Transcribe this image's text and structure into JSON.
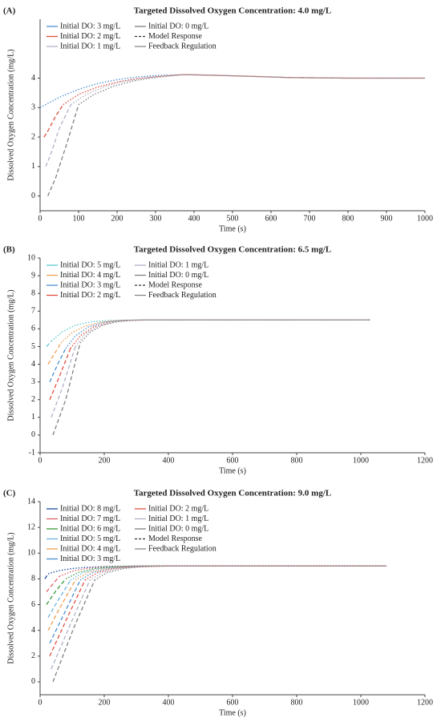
{
  "chart_data": [
    {
      "type": "line",
      "panel_label": "(A)",
      "title": "Targeted Dissolved Oxygen Concentration: 4.0 mg/L",
      "x_label": "Time (s)",
      "y_label": "Dissolved Oxygen Concentration (mg/L)",
      "xlim": [
        0,
        1000
      ],
      "ylim": [
        -0.5,
        6
      ],
      "xticks": [
        0,
        100,
        200,
        300,
        400,
        500,
        600,
        700,
        800,
        900,
        1000
      ],
      "yticks": [
        0,
        1,
        2,
        3,
        4
      ],
      "line_styles": [
        {
          "name": "Model Response",
          "style": "dashed",
          "color": "#333333"
        },
        {
          "name": "Feedback Regulation",
          "style": "solid",
          "color": "#888888"
        }
      ],
      "series": [
        {
          "name": "Initial DO: 3 mg/L",
          "color": "#4a90d0",
          "segments": [
            {
              "style": "dotted",
              "x": [
                0,
                50,
                100,
                150,
                200,
                250,
                300,
                370,
                450,
                550,
                650,
                800,
                1000
              ],
              "values": [
                3.0,
                3.35,
                3.62,
                3.82,
                3.95,
                4.04,
                4.09,
                4.12,
                4.1,
                4.06,
                4.02,
                4.0,
                4.0
              ]
            }
          ]
        },
        {
          "name": "Initial DO: 2 mg/L",
          "color": "#e05040",
          "segments": [
            {
              "style": "dashed",
              "x": [
                10,
                20,
                40,
                60
              ],
              "values": [
                2.0,
                2.2,
                2.7,
                3.1
              ]
            },
            {
              "style": "dotted",
              "x": [
                60,
                100,
                150,
                200,
                250,
                300,
                370,
                450,
                550,
                650,
                800,
                1000
              ],
              "values": [
                3.1,
                3.45,
                3.7,
                3.87,
                3.98,
                4.05,
                4.12,
                4.1,
                4.06,
                4.02,
                4.0,
                4.0
              ]
            }
          ]
        },
        {
          "name": "Initial DO: 1 mg/L",
          "color": "#b0b0c8",
          "segments": [
            {
              "style": "dashed",
              "x": [
                15,
                30,
                50,
                80
              ],
              "values": [
                1.0,
                1.5,
                2.3,
                3.1
              ]
            },
            {
              "style": "dotted",
              "x": [
                80,
                120,
                170,
                220,
                270,
                320,
                370,
                450,
                550,
                650,
                800,
                1000
              ],
              "values": [
                3.1,
                3.45,
                3.72,
                3.9,
                4.01,
                4.08,
                4.12,
                4.1,
                4.06,
                4.02,
                4.0,
                4.0
              ]
            }
          ]
        },
        {
          "name": "Initial DO: 0 mg/L",
          "color": "#808080",
          "segments": [
            {
              "style": "dashed",
              "x": [
                20,
                40,
                70,
                100
              ],
              "values": [
                0.0,
                0.6,
                1.8,
                3.1
              ]
            },
            {
              "style": "dotted",
              "x": [
                100,
                140,
                190,
                240,
                290,
                340,
                380,
                450,
                550,
                650,
                800,
                1000
              ],
              "values": [
                3.1,
                3.45,
                3.72,
                3.9,
                4.01,
                4.08,
                4.12,
                4.1,
                4.06,
                4.02,
                4.0,
                4.0
              ]
            }
          ]
        }
      ]
    },
    {
      "type": "line",
      "panel_label": "(B)",
      "title": "Targeted Dissolved Oxygen Concentration: 6.5 mg/L",
      "x_label": "Time (s)",
      "y_label": "Dissolved Oxygen Concentration (mg/L)",
      "xlim": [
        0,
        1200
      ],
      "ylim": [
        -1,
        10
      ],
      "xticks": [
        0,
        200,
        400,
        600,
        800,
        1000,
        1200
      ],
      "yticks": [
        -1,
        0,
        1,
        2,
        3,
        4,
        5,
        6,
        7,
        8,
        9,
        10
      ],
      "line_styles": [
        {
          "name": "Model Response",
          "style": "dashed",
          "color": "#333333"
        },
        {
          "name": "Feedback Regulation",
          "style": "solid",
          "color": "#888888"
        }
      ],
      "series": [
        {
          "name": "Initial DO: 5 mg/L",
          "color": "#5bc8d0",
          "segments": [
            {
              "style": "dashed",
              "x": [
                20,
                35
              ],
              "values": [
                5.0,
                5.3
              ]
            },
            {
              "style": "dotted",
              "x": [
                35,
                70,
                110,
                160,
                220,
                300,
                500,
                800,
                1030
              ],
              "values": [
                5.3,
                5.85,
                6.2,
                6.4,
                6.48,
                6.5,
                6.5,
                6.5,
                6.5
              ]
            }
          ]
        },
        {
          "name": "Initial DO: 4 mg/L",
          "color": "#f0a050",
          "segments": [
            {
              "style": "dashed",
              "x": [
                25,
                45,
                65
              ],
              "values": [
                4.0,
                4.6,
                5.2
              ]
            },
            {
              "style": "dotted",
              "x": [
                65,
                100,
                140,
                190,
                250,
                320,
                500,
                1030
              ],
              "values": [
                5.2,
                5.8,
                6.15,
                6.38,
                6.48,
                6.5,
                6.5,
                6.5
              ]
            }
          ]
        },
        {
          "name": "Initial DO: 3 mg/L",
          "color": "#4a90d0",
          "segments": [
            {
              "style": "dashed",
              "x": [
                30,
                55,
                80
              ],
              "values": [
                3.0,
                4.0,
                4.9
              ]
            },
            {
              "style": "dotted",
              "x": [
                80,
                110,
                150,
                200,
                260,
                330,
                500,
                1030
              ],
              "values": [
                4.9,
                5.6,
                6.1,
                6.38,
                6.48,
                6.5,
                6.5,
                6.5
              ]
            }
          ]
        },
        {
          "name": "Initial DO: 2 mg/L",
          "color": "#e05040",
          "segments": [
            {
              "style": "dashed",
              "x": [
                30,
                60,
                95
              ],
              "values": [
                2.0,
                3.3,
                4.9
              ]
            },
            {
              "style": "dotted",
              "x": [
                95,
                125,
                165,
                215,
                270,
                340,
                500,
                1030
              ],
              "values": [
                4.9,
                5.6,
                6.1,
                6.38,
                6.48,
                6.5,
                6.5,
                6.5
              ]
            }
          ]
        },
        {
          "name": "Initial DO: 1 mg/L",
          "color": "#b0b0c8",
          "segments": [
            {
              "style": "dashed",
              "x": [
                35,
                70,
                110
              ],
              "values": [
                1.0,
                2.7,
                5.0
              ]
            },
            {
              "style": "dotted",
              "x": [
                110,
                140,
                180,
                230,
                290,
                350,
                500,
                1030
              ],
              "values": [
                5.0,
                5.7,
                6.15,
                6.4,
                6.49,
                6.5,
                6.5,
                6.5
              ]
            }
          ]
        },
        {
          "name": "Initial DO: 0 mg/L",
          "color": "#808080",
          "segments": [
            {
              "style": "dashed",
              "x": [
                40,
                80,
                125
              ],
              "values": [
                0.0,
                2.0,
                5.2
              ]
            },
            {
              "style": "dotted",
              "x": [
                125,
                155,
                195,
                245,
                300,
                360,
                500,
                1030
              ],
              "values": [
                5.2,
                5.8,
                6.2,
                6.42,
                6.49,
                6.5,
                6.5,
                6.5
              ]
            }
          ]
        }
      ]
    },
    {
      "type": "line",
      "panel_label": "(C)",
      "title": "Targeted Dissolved Oxygen Concentration: 9.0 mg/L",
      "x_label": "Time (s)",
      "y_label": "Dissolved Oxygen Concentration (mg/L)",
      "xlim": [
        0,
        1200
      ],
      "ylim": [
        -1,
        14
      ],
      "xticks": [
        0,
        200,
        400,
        600,
        800,
        1000,
        1200
      ],
      "yticks": [
        0,
        2,
        4,
        6,
        8,
        10,
        12,
        14
      ],
      "line_styles": [
        {
          "name": "Model Response",
          "style": "dashed",
          "color": "#333333"
        },
        {
          "name": "Feedback Regulation",
          "style": "solid",
          "color": "#888888"
        }
      ],
      "series": [
        {
          "name": "Initial DO: 8 mg/L",
          "color": "#1f4e9e",
          "segments": [
            {
              "style": "dashed",
              "x": [
                15,
                25
              ],
              "values": [
                8.0,
                8.4
              ]
            },
            {
              "style": "dotted",
              "x": [
                25,
                60,
                100,
                150,
                200,
                300,
                500,
                1080
              ],
              "values": [
                8.4,
                8.65,
                8.8,
                8.9,
                8.96,
                9.0,
                9.0,
                9.0
              ]
            }
          ]
        },
        {
          "name": "Initial DO: 7 mg/L",
          "color": "#e0606a",
          "segments": [
            {
              "style": "dashed",
              "x": [
                20,
                40,
                60
              ],
              "values": [
                7.0,
                7.6,
                8.2
              ]
            },
            {
              "style": "dotted",
              "x": [
                60,
                100,
                150,
                200,
                250,
                320,
                500,
                1080
              ],
              "values": [
                8.2,
                8.6,
                8.82,
                8.93,
                8.98,
                9.0,
                9.0,
                9.0
              ]
            }
          ]
        },
        {
          "name": "Initial DO: 6 mg/L",
          "color": "#3a9a3a",
          "segments": [
            {
              "style": "dashed",
              "x": [
                20,
                50,
                80
              ],
              "values": [
                6.0,
                7.1,
                8.0
              ]
            },
            {
              "style": "dotted",
              "x": [
                80,
                120,
                170,
                220,
                270,
                340,
                500,
                1080
              ],
              "values": [
                8.0,
                8.5,
                8.8,
                8.93,
                8.98,
                9.0,
                9.0,
                9.0
              ]
            }
          ]
        },
        {
          "name": "Initial DO: 5 mg/L",
          "color": "#6cb4e0",
          "segments": [
            {
              "style": "dashed",
              "x": [
                25,
                60,
                95
              ],
              "values": [
                5.0,
                6.5,
                7.9
              ]
            },
            {
              "style": "dotted",
              "x": [
                95,
                135,
                185,
                235,
                285,
                350,
                500,
                1080
              ],
              "values": [
                7.9,
                8.5,
                8.8,
                8.93,
                8.98,
                9.0,
                9.0,
                9.0
              ]
            }
          ]
        },
        {
          "name": "Initial DO: 4 mg/L",
          "color": "#f0a050",
          "segments": [
            {
              "style": "dashed",
              "x": [
                25,
                65,
                110
              ],
              "values": [
                4.0,
                5.9,
                7.9
              ]
            },
            {
              "style": "dotted",
              "x": [
                110,
                150,
                200,
                250,
                300,
                360,
                500,
                1080
              ],
              "values": [
                7.9,
                8.5,
                8.8,
                8.93,
                8.98,
                9.0,
                9.0,
                9.0
              ]
            }
          ]
        },
        {
          "name": "Initial DO: 3 mg/L",
          "color": "#4a90d0",
          "segments": [
            {
              "style": "dashed",
              "x": [
                30,
                75,
                125
              ],
              "values": [
                3.0,
                5.3,
                7.9
              ]
            },
            {
              "style": "dotted",
              "x": [
                125,
                165,
                215,
                265,
                315,
                375,
                500,
                1080
              ],
              "values": [
                7.9,
                8.5,
                8.8,
                8.93,
                8.98,
                9.0,
                9.0,
                9.0
              ]
            }
          ]
        },
        {
          "name": "Initial DO: 2 mg/L",
          "color": "#e05040",
          "segments": [
            {
              "style": "dashed",
              "x": [
                30,
                85,
                140
              ],
              "values": [
                2.0,
                5.0,
                7.9
              ]
            },
            {
              "style": "dotted",
              "x": [
                140,
                180,
                230,
                280,
                330,
                390,
                500,
                1080
              ],
              "values": [
                7.9,
                8.5,
                8.8,
                8.93,
                8.98,
                9.0,
                9.0,
                9.0
              ]
            }
          ]
        },
        {
          "name": "Initial DO: 1 mg/L",
          "color": "#b0b0c8",
          "segments": [
            {
              "style": "dashed",
              "x": [
                35,
                95,
                155
              ],
              "values": [
                1.0,
                4.5,
                7.9
              ]
            },
            {
              "style": "dotted",
              "x": [
                155,
                195,
                245,
                295,
                345,
                405,
                500,
                1080
              ],
              "values": [
                7.9,
                8.5,
                8.8,
                8.93,
                8.98,
                9.0,
                9.0,
                9.0
              ]
            }
          ]
        },
        {
          "name": "Initial DO: 0 mg/L",
          "color": "#808080",
          "segments": [
            {
              "style": "dashed",
              "x": [
                40,
                105,
                170
              ],
              "values": [
                0.0,
                4.2,
                7.9
              ]
            },
            {
              "style": "dotted",
              "x": [
                170,
                210,
                260,
                310,
                360,
                420,
                500,
                1080
              ],
              "values": [
                7.9,
                8.5,
                8.8,
                8.93,
                8.98,
                9.0,
                9.0,
                9.0
              ]
            }
          ]
        }
      ]
    }
  ]
}
